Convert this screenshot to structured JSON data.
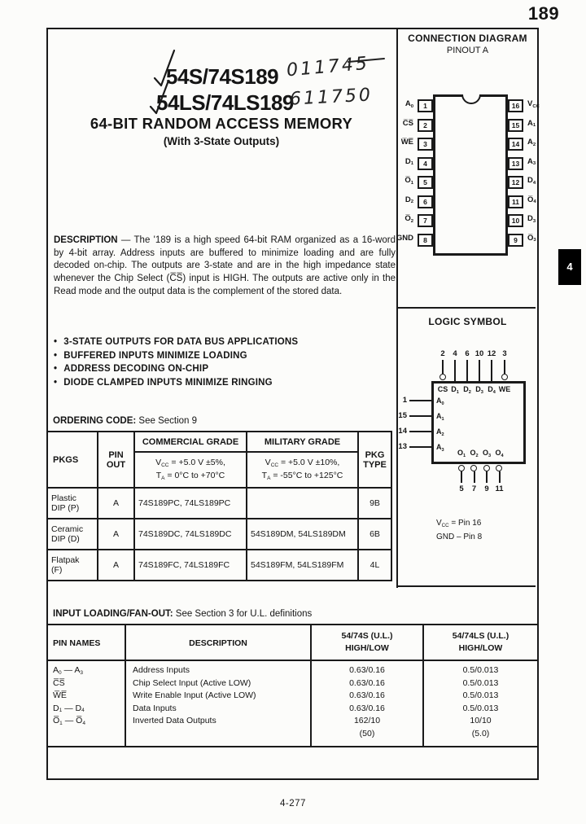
{
  "page": {
    "doc_number": "189",
    "footer": "4-277",
    "section_tab": "4"
  },
  "title_block": {
    "part1": "54S/74S189",
    "part1_handwritten": "011745",
    "part2": "54LS/74LS189",
    "part2_handwritten": "611750",
    "title": "64-BIT RANDOM ACCESS MEMORY",
    "subtitle": "(With 3-State Outputs)"
  },
  "description": {
    "label": "DESCRIPTION",
    "text": " — The '189 is a high speed 64-bit RAM organized as a 16-word by 4-bit array. Address inputs are buffered to minimize loading and are fully decoded on-chip. The outputs are 3-state and are in the high impedance state whenever the Chip Select (C̅S̅) input is HIGH. The outputs are active only in the Read mode and the output data is the complement of the stored data."
  },
  "features": [
    "3-STATE OUTPUTS FOR DATA BUS APPLICATIONS",
    "BUFFERED INPUTS MINIMIZE LOADING",
    "ADDRESS DECODING ON-CHIP",
    "DIODE CLAMPED INPUTS MINIMIZE RINGING"
  ],
  "ordering": {
    "heading": "ORDERING CODE:",
    "heading_note": " See Section 9",
    "headers": {
      "pkgs": "PKGS",
      "pin_out": "PIN\nOUT",
      "commercial": "COMMERCIAL GRADE",
      "military": "MILITARY GRADE",
      "pkg_type": "PKG\nTYPE"
    },
    "commercial_cond": "V~CC~ = +5.0 V ±5%,\nT~A~ = 0°C to +70°C",
    "military_cond": "V~CC~ = +5.0 V ±10%,\nT~A~ = -55°C to +125°C",
    "rows": [
      {
        "pkg": "Plastic\nDIP (P)",
        "pinout": "A",
        "commercial": "74S189PC, 74LS189PC",
        "military": "",
        "type": "9B"
      },
      {
        "pkg": "Ceramic\nDIP (D)",
        "pinout": "A",
        "commercial": "74S189DC, 74LS189DC",
        "military": "54S189DM, 54LS189DM",
        "type": "6B"
      },
      {
        "pkg": "Flatpak\n(F)",
        "pinout": "A",
        "commercial": "74S189FC, 74LS189FC",
        "military": "54S189FM, 54LS189FM",
        "type": "4L"
      }
    ]
  },
  "connection_diagram": {
    "title": "CONNECTION DIAGRAM",
    "subtitle": "PINOUT A",
    "left_pins": [
      {
        "num": "1",
        "label": "A~0~"
      },
      {
        "num": "2",
        "label": "C̅S̅"
      },
      {
        "num": "3",
        "label": "W̅E̅"
      },
      {
        "num": "4",
        "label": "D~1~"
      },
      {
        "num": "5",
        "label": "O̅~1~"
      },
      {
        "num": "6",
        "label": "D~2~"
      },
      {
        "num": "7",
        "label": "O̅~2~"
      },
      {
        "num": "8",
        "label": "GND"
      }
    ],
    "right_pins": [
      {
        "num": "16",
        "label": "V~CC~"
      },
      {
        "num": "15",
        "label": "A~1~"
      },
      {
        "num": "14",
        "label": "A~2~"
      },
      {
        "num": "13",
        "label": "A~3~"
      },
      {
        "num": "12",
        "label": "D~4~"
      },
      {
        "num": "11",
        "label": "O̅~4~"
      },
      {
        "num": "10",
        "label": "D~3~"
      },
      {
        "num": "9",
        "label": "O̅~3~"
      }
    ]
  },
  "logic_symbol": {
    "title": "LOGIC SYMBOL",
    "top_pins": [
      {
        "num": "2",
        "label": "CS",
        "bubble": true
      },
      {
        "num": "4",
        "label": "D~1~",
        "bubble": false
      },
      {
        "num": "6",
        "label": "D~2~",
        "bubble": false
      },
      {
        "num": "10",
        "label": "D~3~",
        "bubble": false
      },
      {
        "num": "12",
        "label": "D~4~",
        "bubble": false
      },
      {
        "num": "3",
        "label": "WE",
        "bubble": true
      }
    ],
    "left_pins": [
      {
        "num": "1",
        "label": "A~0~"
      },
      {
        "num": "15",
        "label": "A~1~"
      },
      {
        "num": "14",
        "label": "A~2~"
      },
      {
        "num": "13",
        "label": "A~3~"
      }
    ],
    "bottom_pins": [
      {
        "num": "5",
        "label": "O~1~"
      },
      {
        "num": "7",
        "label": "O~2~"
      },
      {
        "num": "9",
        "label": "O~3~"
      },
      {
        "num": "11",
        "label": "O~4~"
      }
    ],
    "note_vcc": "V~CC~ = Pin 16",
    "note_gnd": "GND – Pin 8"
  },
  "input_loading": {
    "heading": "INPUT LOADING/FAN-OUT:",
    "heading_note": " See Section 3 for U.L. definitions",
    "headers": {
      "pin_names": "PIN NAMES",
      "description": "DESCRIPTION",
      "s": "54/74S (U.L.)\nHIGH/LOW",
      "ls": "54/74LS (U.L.)\nHIGH/LOW"
    },
    "rows": [
      {
        "pin": "A~0~ — A~3~",
        "desc": "Address Inputs",
        "s": "0.63/0.16",
        "ls": "0.5/0.013"
      },
      {
        "pin": "C̅S̅",
        "desc": "Chip Select Input (Active LOW)",
        "s": "0.63/0.16",
        "ls": "0.5/0.013"
      },
      {
        "pin": "W̅E̅",
        "desc": "Write Enable Input (Active LOW)",
        "s": "0.63/0.16",
        "ls": "0.5/0.013"
      },
      {
        "pin": "D~1~ — D~4~",
        "desc": "Data Inputs",
        "s": "0.63/0.16",
        "ls": "0.5/0.013"
      },
      {
        "pin": "O̅~1~ — O̅~4~",
        "desc": "Inverted Data Outputs",
        "s": "162/10",
        "ls": "10/10"
      },
      {
        "pin": "",
        "desc": "",
        "s": "(50)",
        "ls": "(5.0)"
      }
    ]
  }
}
